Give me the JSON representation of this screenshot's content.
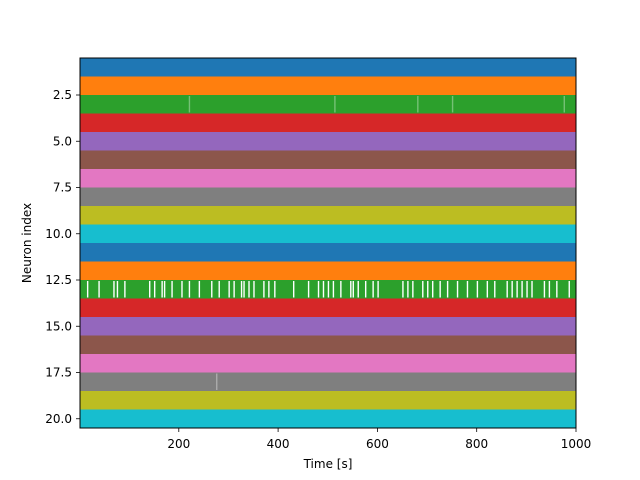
{
  "chart_data": {
    "type": "raster",
    "title": "",
    "xlabel": "Time [s]",
    "ylabel": "Neuron index",
    "xlim": [
      1,
      1000
    ],
    "ylim": [
      20.5,
      0.5
    ],
    "y_inverted": true,
    "x_ticks": [
      "200",
      "400",
      "600",
      "800",
      "1000"
    ],
    "x_tick_values": [
      200,
      400,
      600,
      800,
      1000
    ],
    "y_ticks": [
      "2.5",
      "5.0",
      "7.5",
      "10.0",
      "12.5",
      "15.0",
      "17.5",
      "20.0"
    ],
    "y_tick_values": [
      2.5,
      5.0,
      7.5,
      10.0,
      12.5,
      15.0,
      17.5,
      20.0
    ],
    "grid": false,
    "series": [
      {
        "neuron": 1,
        "color": "#1f77b4",
        "gaps": []
      },
      {
        "neuron": 2,
        "color": "#ff7f0e",
        "gaps": []
      },
      {
        "neuron": 3,
        "color": "#2ca02c",
        "gaps": [
          220,
          513,
          680,
          750,
          975
        ]
      },
      {
        "neuron": 4,
        "color": "#d62728",
        "gaps": []
      },
      {
        "neuron": 5,
        "color": "#9467bd",
        "gaps": []
      },
      {
        "neuron": 6,
        "color": "#8c564b",
        "gaps": []
      },
      {
        "neuron": 7,
        "color": "#e377c2",
        "gaps": []
      },
      {
        "neuron": 8,
        "color": "#7f7f7f",
        "gaps": []
      },
      {
        "neuron": 9,
        "color": "#bcbd22",
        "gaps": []
      },
      {
        "neuron": 10,
        "color": "#17becf",
        "gaps": []
      },
      {
        "neuron": 11,
        "color": "#1f77b4",
        "gaps": []
      },
      {
        "neuron": 12,
        "color": "#ff7f0e",
        "gaps": []
      },
      {
        "neuron": 13,
        "color": "#2ca02c",
        "gaps": [
          15,
          38,
          68,
          75,
          90,
          140,
          150,
          165,
          170,
          185,
          205,
          220,
          240,
          265,
          280,
          300,
          310,
          325,
          330,
          340,
          350,
          370,
          380,
          392,
          430,
          460,
          480,
          490,
          500,
          510,
          525,
          545,
          550,
          560,
          575,
          590,
          600,
          650,
          660,
          670,
          690,
          700,
          710,
          725,
          740,
          760,
          780,
          800,
          820,
          835,
          860,
          870,
          880,
          890,
          900,
          910,
          935,
          945,
          960,
          985
        ]
      },
      {
        "neuron": 14,
        "color": "#d62728",
        "gaps": []
      },
      {
        "neuron": 15,
        "color": "#9467bd",
        "gaps": []
      },
      {
        "neuron": 16,
        "color": "#8c564b",
        "gaps": []
      },
      {
        "neuron": 17,
        "color": "#e377c2",
        "gaps": []
      },
      {
        "neuron": 18,
        "color": "#7f7f7f",
        "gaps": [
          275
        ]
      },
      {
        "neuron": 19,
        "color": "#bcbd22",
        "gaps": []
      },
      {
        "neuron": 20,
        "color": "#17becf",
        "gaps": []
      }
    ]
  }
}
